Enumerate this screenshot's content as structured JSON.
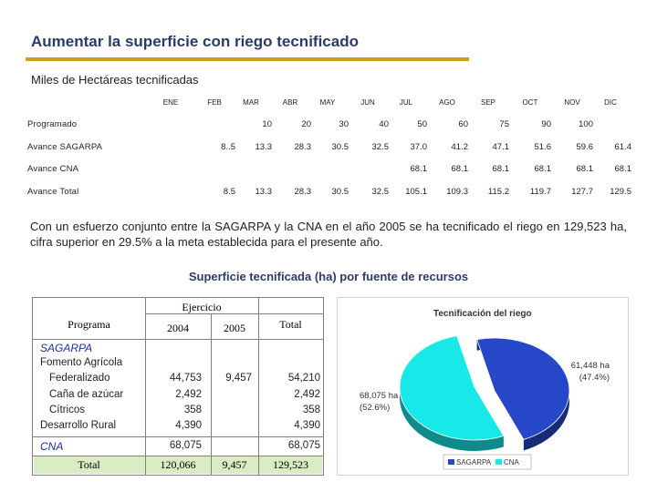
{
  "header": {
    "title": "Aumentar la superficie con riego tecnificado",
    "subtitle": "Miles de Hectáreas tecnificadas"
  },
  "monthly": {
    "months": [
      "ENE",
      "FEB",
      "MAR",
      "ABR",
      "MAY",
      "JUN",
      "JUL",
      "AGO",
      "SEP",
      "OCT",
      "NOV",
      "DIC"
    ],
    "rows": [
      {
        "label": "Programado",
        "values": [
          "",
          "",
          "10",
          "20",
          "30",
          "40",
          "50",
          "60",
          "75",
          "90",
          "100",
          ""
        ]
      },
      {
        "label": "Avance SAGARPA",
        "values": [
          "",
          "8..5",
          "13.3",
          "28.3",
          "30.5",
          "32.5",
          "37.0",
          "41.2",
          "47.1",
          "51.6",
          "59.6",
          "61.4"
        ]
      },
      {
        "label": "Avance CNA",
        "values": [
          "",
          "",
          "",
          "",
          "",
          "",
          "68.1",
          "68.1",
          "68.1",
          "68.1",
          "68.1",
          "68.1"
        ]
      },
      {
        "label": "Avance Total",
        "values": [
          "",
          "8.5",
          "13.3",
          "28.3",
          "30.5",
          "32.5",
          "105.1",
          "109.3",
          "115.2",
          "119.7",
          "127.7",
          "129.5"
        ]
      }
    ]
  },
  "summary": "Con un esfuerzo conjunto entre la SAGARPA y la CNA en el año 2005 se ha tecnificado el riego en 129,523 ha, cifra superior en 29.5% a la meta establecida para el presente año.",
  "funding_table": {
    "title": "Superficie tecnificada (ha) por fuente de recursos",
    "col_program": "Programa",
    "col_group": "Ejercicio",
    "col_2004": "2004",
    "col_2005": "2005",
    "col_total": "Total",
    "sagarpa": {
      "head": "SAGARPA",
      "sub": "Fomento Agrícola",
      "items": [
        {
          "label": "Federalizado",
          "v2004": "44,753",
          "v2005": "9,457",
          "total": "54,210"
        },
        {
          "label": "Caña de azúcar",
          "v2004": "2,492",
          "v2005": "",
          "total": "2,492"
        },
        {
          "label": "Cítricos",
          "v2004": "358",
          "v2005": "",
          "total": "358"
        },
        {
          "label": "Desarrollo Rural",
          "v2004": "4,390",
          "v2005": "",
          "total": "4,390"
        }
      ]
    },
    "cna": {
      "head": "CNA",
      "v2004": "68,075",
      "v2005": "",
      "total": "68,075"
    },
    "total": {
      "label": "Total",
      "v2004": "120,066",
      "v2005": "9,457",
      "total": "129,523"
    }
  },
  "chart_data": {
    "type": "pie",
    "title": "Tecnificación del riego",
    "slices": [
      {
        "name": "SAGARPA",
        "value": 61448,
        "percent": 47.4,
        "label": "61,448 ha",
        "pct_label": "(47.4%)",
        "color": "#2747c9"
      },
      {
        "name": "CNA",
        "value": 68075,
        "percent": 52.6,
        "label": "68,075 ha",
        "pct_label": "(52.6%)",
        "color": "#19e8e8"
      }
    ],
    "legend": [
      "SAGARPA",
      "CNA"
    ],
    "legend_position": "bottom"
  }
}
